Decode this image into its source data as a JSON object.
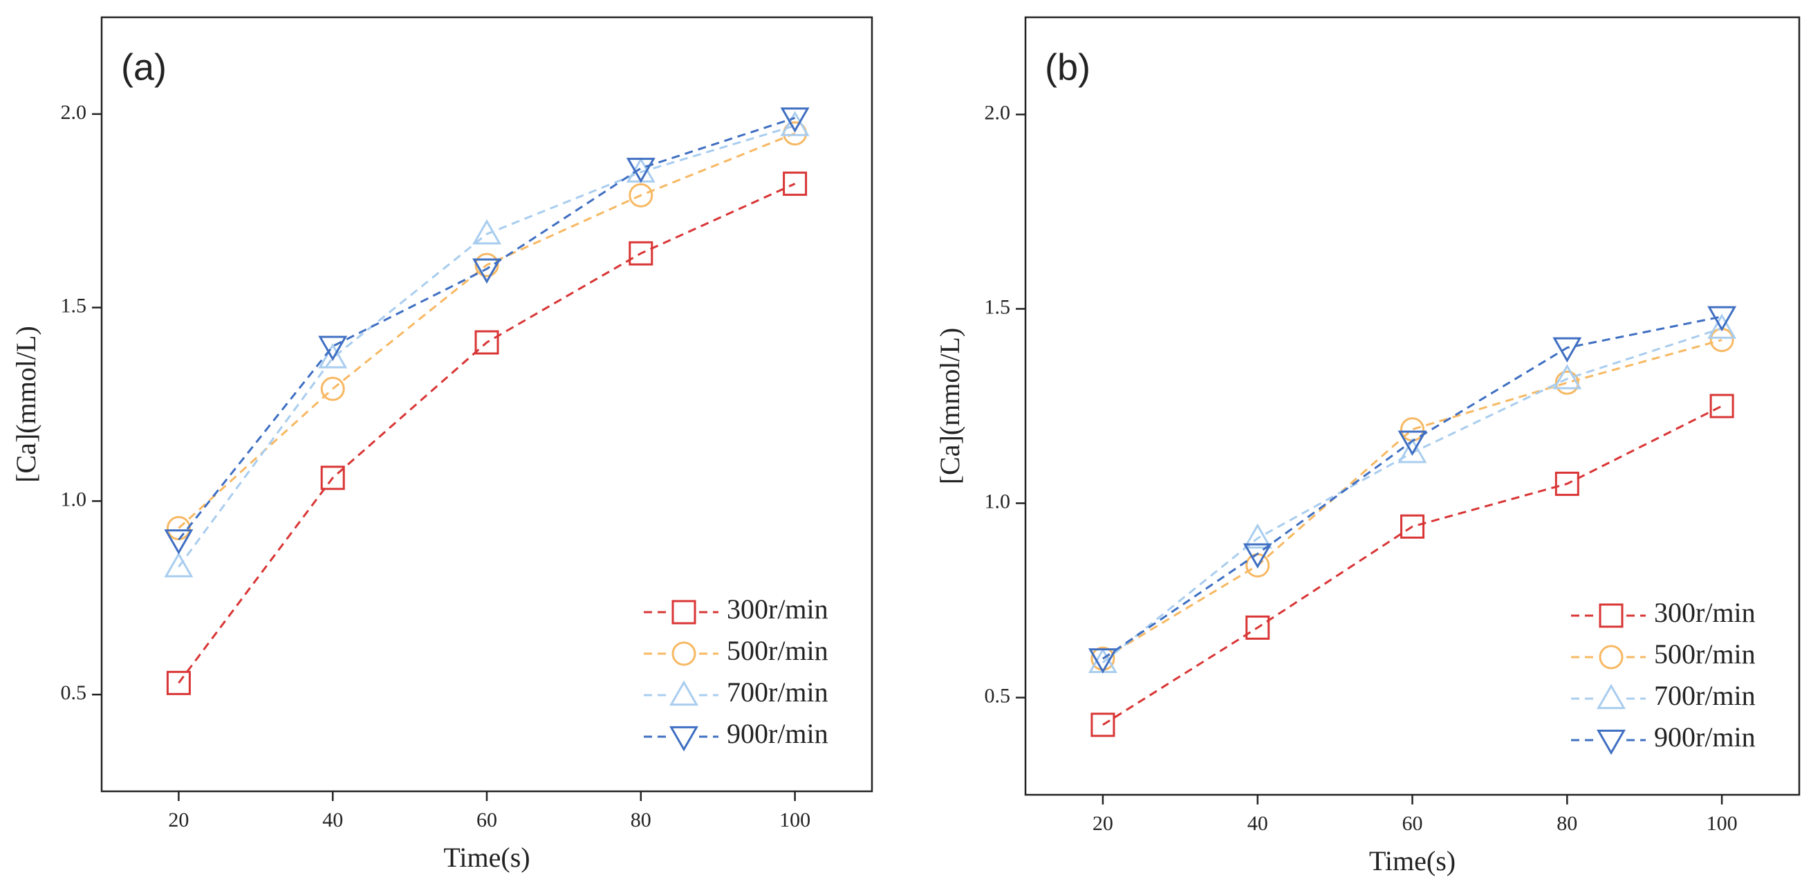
{
  "chart_data": [
    {
      "type": "line",
      "label": "(a)",
      "x_label": "Time(s)",
      "y_label": "[Ca](mmol/L)",
      "x": [
        20,
        40,
        60,
        80,
        100
      ],
      "series": [
        {
          "name": "300r/min",
          "color": "#d93535",
          "marker": "square",
          "values": [
            0.53,
            1.06,
            1.41,
            1.64,
            1.82
          ]
        },
        {
          "name": "500r/min",
          "color": "#f7b862",
          "marker": "circle",
          "values": [
            0.93,
            1.29,
            1.61,
            1.79,
            1.95
          ]
        },
        {
          "name": "700r/min",
          "color": "#a9cdef",
          "marker": "triangle-up",
          "values": [
            0.83,
            1.37,
            1.69,
            1.85,
            1.97
          ]
        },
        {
          "name": "900r/min",
          "color": "#3f6fc2",
          "marker": "triangle-down",
          "values": [
            0.9,
            1.4,
            1.6,
            1.86,
            1.99
          ]
        }
      ],
      "xlim": [
        10,
        110
      ],
      "ylim": [
        0.25,
        2.25
      ],
      "xticks": [
        20,
        40,
        60,
        80,
        100
      ],
      "yticks": [
        0.5,
        {
          "value": 1,
          "label": "1.0"
        },
        1.5,
        {
          "value": 2,
          "label": "2.0"
        }
      ]
    },
    {
      "type": "line",
      "label": "(b)",
      "x_label": "Time(s)",
      "y_label": "[Ca](mmol/L)",
      "x": [
        20,
        40,
        60,
        80,
        100
      ],
      "series": [
        {
          "name": "300r/min",
          "color": "#d93535",
          "marker": "square",
          "values": [
            0.43,
            0.68,
            0.94,
            1.05,
            1.25
          ]
        },
        {
          "name": "500r/min",
          "color": "#f7b862",
          "marker": "circle",
          "values": [
            0.6,
            0.84,
            1.19,
            1.31,
            1.42
          ]
        },
        {
          "name": "700r/min",
          "color": "#a9cdef",
          "marker": "triangle-up",
          "values": [
            0.59,
            0.91,
            1.13,
            1.32,
            1.45
          ]
        },
        {
          "name": "900r/min",
          "color": "#3f6fc2",
          "marker": "triangle-down",
          "values": [
            0.6,
            0.87,
            1.16,
            1.4,
            1.48
          ]
        }
      ],
      "xlim": [
        10,
        110
      ],
      "ylim": [
        0.25,
        2.25
      ],
      "xticks": [
        20,
        40,
        60,
        80,
        100
      ],
      "yticks": [
        0.5,
        {
          "value": 1,
          "label": "1.0"
        },
        1.5,
        {
          "value": 2,
          "label": "2.0"
        }
      ]
    }
  ]
}
